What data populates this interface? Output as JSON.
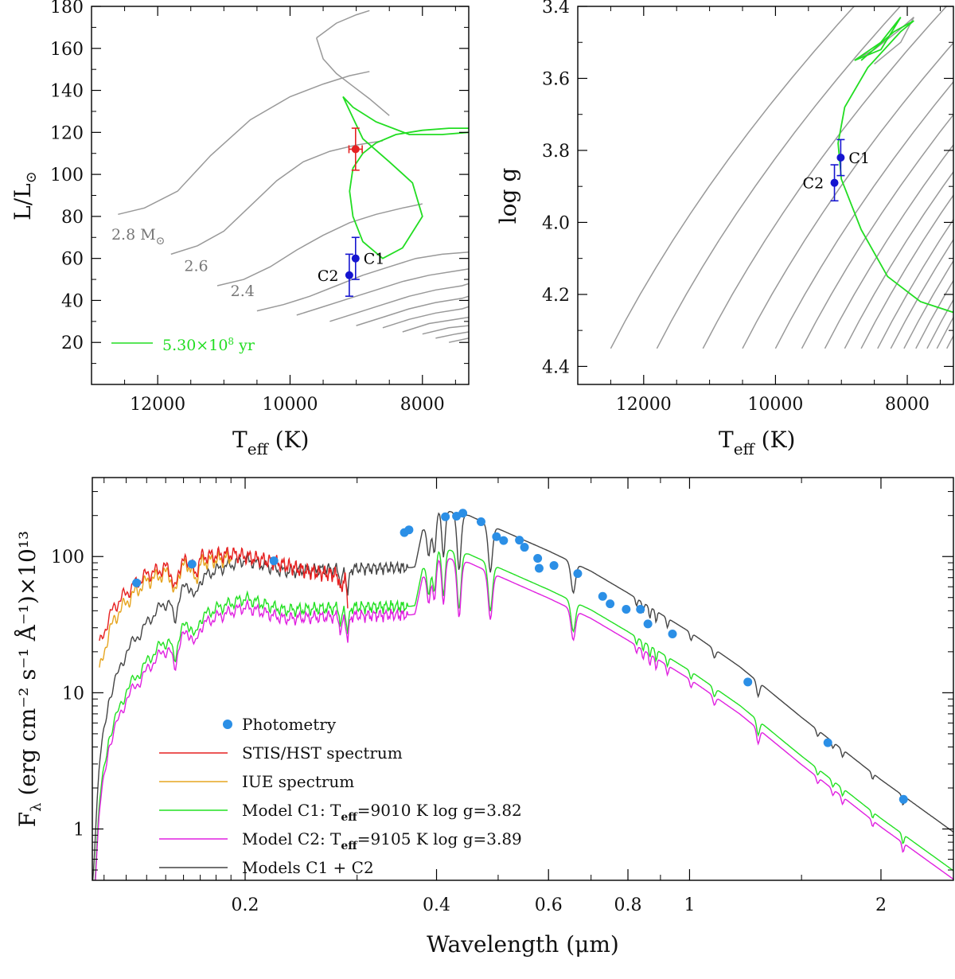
{
  "chart_data": [
    {
      "id": "hr_diagram",
      "type": "line",
      "title": "",
      "xlabel": "T",
      "xlabel_sub": "eff",
      "xlabel_units": "(K)",
      "ylabel": "L/L",
      "ylabel_sub": "⊙",
      "xlim": [
        13000,
        7300
      ],
      "ylim": [
        0,
        180
      ],
      "xticks": [
        12000,
        10000,
        8000
      ],
      "yticks": [
        20,
        40,
        60,
        80,
        100,
        120,
        140,
        160,
        180
      ],
      "grid": false,
      "colors": {
        "track": "#999999",
        "isochrone": "#22dd22",
        "point": "#1515d0",
        "primary": "#e52222"
      },
      "tracks": [
        {
          "name": "2.8",
          "x": [
            12600,
            12200,
            11700,
            11200,
            10600,
            10000,
            9500,
            9100,
            8800
          ],
          "y": [
            81,
            84,
            92,
            109,
            126,
            137,
            143,
            147,
            149
          ]
        },
        {
          "name": "2.6",
          "x": [
            11800,
            11400,
            11000,
            10600,
            10200,
            9800,
            9400,
            9000,
            8600
          ],
          "y": [
            62,
            66,
            73,
            85,
            97,
            106,
            111,
            114,
            116
          ]
        },
        {
          "name": "2.4",
          "x": [
            11100,
            10700,
            10300,
            9900,
            9500,
            9100,
            8700,
            8300,
            8000
          ],
          "y": [
            47,
            50,
            56,
            64,
            71,
            77,
            81,
            84,
            86
          ]
        },
        {
          "name": "g1",
          "x": [
            10500,
            10100,
            9700,
            9300,
            8900,
            8500,
            8100,
            7700,
            7300
          ],
          "y": [
            35,
            38,
            42,
            47,
            52,
            56,
            60,
            62,
            63
          ]
        },
        {
          "name": "g2",
          "x": [
            9900,
            9500,
            9100,
            8700,
            8300,
            7900,
            7500,
            7300
          ],
          "y": [
            33,
            37,
            41,
            45,
            49,
            52,
            54,
            55
          ]
        },
        {
          "name": "g3",
          "x": [
            9400,
            9000,
            8600,
            8200,
            7800,
            7400,
            7300
          ],
          "y": [
            30,
            34,
            38,
            42,
            45,
            47,
            48
          ]
        },
        {
          "name": "g4",
          "x": [
            9000,
            8600,
            8200,
            7800,
            7400,
            7300
          ],
          "y": [
            28,
            32,
            36,
            39,
            41,
            42
          ]
        },
        {
          "name": "g5",
          "x": [
            8600,
            8200,
            7800,
            7400,
            7300
          ],
          "y": [
            27,
            31,
            34,
            36,
            37
          ]
        },
        {
          "name": "g6",
          "x": [
            8300,
            7900,
            7500,
            7300
          ],
          "y": [
            25,
            29,
            31,
            32
          ]
        },
        {
          "name": "g7",
          "x": [
            8000,
            7600,
            7300
          ],
          "y": [
            24,
            27,
            28
          ]
        },
        {
          "name": "g8",
          "x": [
            7800,
            7500,
            7300
          ],
          "y": [
            22,
            24,
            25
          ]
        },
        {
          "name": "g9",
          "x": [
            7600,
            7300
          ],
          "y": [
            20,
            22
          ]
        },
        {
          "name": "hook_a",
          "x": [
            9600,
            9500,
            9300,
            9050,
            8800,
            8500
          ],
          "y": [
            165,
            155,
            148,
            142,
            136,
            128
          ]
        },
        {
          "name": "hook_b",
          "x": [
            9600,
            9300,
            9000,
            8800
          ],
          "y": [
            165,
            172,
            176,
            178
          ]
        }
      ],
      "isochrone": {
        "label": "5.30×10",
        "label_exp": "8",
        "label_unit": "yr",
        "x": [
          7300,
          7600,
          8000,
          8400,
          8700,
          8900,
          9050,
          9100,
          9050,
          8900,
          8600,
          8300,
          8000,
          8150,
          8500,
          8900,
          9200,
          9050,
          8700,
          8200,
          7700,
          7300
        ],
        "y": [
          122,
          122,
          121,
          119,
          115,
          110,
          103,
          92,
          80,
          68,
          60,
          65,
          80,
          96,
          106,
          117,
          137,
          132,
          125,
          119,
          119,
          120
        ]
      },
      "points": [
        {
          "name": "C1",
          "x": 9010,
          "y": 60,
          "yerr": 10
        },
        {
          "name": "C2",
          "x": 9105,
          "y": 52,
          "yerr": 10
        }
      ],
      "primary": {
        "x": 9010,
        "y": 112,
        "xerr": 100,
        "yerr": 10
      },
      "mass_labels": [
        {
          "text": "2.8 M",
          "sub": "⊙",
          "x": 12700,
          "y": 69
        },
        {
          "text": "2.6",
          "x": 11600,
          "y": 54
        },
        {
          "text": "2.4",
          "x": 10900,
          "y": 42
        }
      ]
    },
    {
      "id": "kiel_diagram",
      "type": "line",
      "title": "",
      "xlabel": "T",
      "xlabel_sub": "eff",
      "xlabel_units": "(K)",
      "ylabel": "log g",
      "xlim": [
        13000,
        7300
      ],
      "ylim": [
        4.45,
        3.4
      ],
      "xticks": [
        12000,
        10000,
        8000
      ],
      "yticks": [
        3.4,
        3.6,
        3.8,
        4.0,
        4.2,
        4.4
      ],
      "ytick_labels": [
        "3.4",
        "3.6",
        "3.8",
        "4.0",
        "4.2",
        "4.4"
      ],
      "grid": false,
      "colors": {
        "track": "#999999",
        "isochrone": "#22dd22",
        "point": "#1515d0"
      },
      "track_starts_x": [
        12500,
        11800,
        11100,
        10500,
        10000,
        9600,
        9250,
        8950,
        8700,
        8450,
        8250,
        8050,
        7870,
        7700,
        7550,
        7400
      ],
      "track_starts_y": 4.35,
      "track_slope_dx": 4200,
      "hook": {
        "x": [
          8800,
          8500,
          8150,
          7900,
          8100,
          8500
        ],
        "y": [
          3.55,
          3.52,
          3.47,
          3.43,
          3.5,
          3.56
        ]
      },
      "isochrone": {
        "x": [
          7300,
          7800,
          8300,
          8700,
          9000,
          9050,
          8950,
          8600,
          8100,
          7900,
          8200,
          8700
        ],
        "y": [
          4.25,
          4.22,
          4.15,
          4.02,
          3.88,
          3.78,
          3.68,
          3.57,
          3.47,
          3.44,
          3.47,
          3.55
        ]
      },
      "isochrone_loop": {
        "x": [
          8800,
          8400,
          8100,
          8400,
          8800
        ],
        "y": [
          3.55,
          3.5,
          3.43,
          3.52,
          3.55
        ]
      },
      "points": [
        {
          "name": "C1",
          "x": 9010,
          "y": 3.82,
          "yerr": 0.05
        },
        {
          "name": "C2",
          "x": 9105,
          "y": 3.89,
          "yerr": 0.05
        }
      ]
    },
    {
      "id": "sed",
      "type": "line",
      "title": "",
      "xlabel": "Wavelength (μm)",
      "ylabel": "F",
      "ylabel_sub": "λ",
      "ylabel_units": "(erg cm⁻² s⁻¹ Å⁻¹)×10¹³",
      "xscale": "log",
      "yscale": "log",
      "xlim": [
        0.115,
        2.6
      ],
      "ylim": [
        0.42,
        380
      ],
      "xticks": [
        0.2,
        0.4,
        0.6,
        0.8,
        1,
        2
      ],
      "xtick_labels": [
        "0.2",
        "0.4",
        "0.6",
        "0.8",
        "1",
        "2"
      ],
      "yticks": [
        1,
        10,
        100
      ],
      "ytick_labels": [
        "1",
        "10",
        "100"
      ],
      "grid": false,
      "photometry": {
        "x": [
          0.135,
          0.165,
          0.222,
          0.356,
          0.362,
          0.413,
          0.43,
          0.44,
          0.47,
          0.497,
          0.51,
          0.54,
          0.55,
          0.577,
          0.58,
          0.612,
          0.667,
          0.73,
          0.75,
          0.795,
          0.837,
          0.86,
          0.94,
          1.235,
          1.65,
          2.17
        ],
        "y": [
          64,
          88,
          93,
          150,
          157,
          196,
          198,
          208,
          180,
          140,
          131,
          132,
          117,
          97,
          82,
          86,
          75,
          51,
          45,
          41,
          41,
          32,
          27,
          12,
          4.3,
          1.65
        ]
      },
      "series": [
        {
          "name": "Photometry",
          "kind": "points",
          "color": "#2b8fe6"
        },
        {
          "name": "STIS/HST spectrum",
          "kind": "line",
          "color": "#e62020",
          "base_x": [
            0.118,
            0.125,
            0.14,
            0.17,
            0.19,
            0.22,
            0.25,
            0.29
          ],
          "base_y": [
            22,
            44,
            74,
            100,
            105,
            92,
            78,
            72
          ]
        },
        {
          "name": "IUE spectrum",
          "kind": "line",
          "color": "#e6a520",
          "base_x": [
            0.118,
            0.125,
            0.14,
            0.16,
            0.18,
            0.19
          ],
          "base_y": [
            14,
            36,
            66,
            85,
            95,
            98
          ]
        },
        {
          "name": "Model C1: T",
          "sub": "eff",
          "rest": "=9010 K  log g=3.82",
          "kind": "model",
          "color": "#22e022",
          "scale": 0.52
        },
        {
          "name": "Model C2: T",
          "sub": "eff",
          "rest": "=9105 K  log g=3.89",
          "kind": "model",
          "color": "#e020e0",
          "scale": 0.45
        },
        {
          "name": "Models C1 + C2",
          "kind": "model",
          "color": "#444444",
          "scale": 1.0
        }
      ],
      "model_base": {
        "x": [
          0.115,
          0.118,
          0.122,
          0.13,
          0.145,
          0.16,
          0.18,
          0.2,
          0.23,
          0.26,
          0.3,
          0.34,
          0.365,
          0.37,
          0.38,
          0.4,
          0.45,
          0.5,
          0.6,
          0.7,
          0.8,
          0.9,
          1.0,
          1.2,
          1.5,
          2.0,
          2.6
        ],
        "y": [
          0.4,
          3,
          9,
          20,
          40,
          58,
          80,
          95,
          78,
          80,
          82,
          83,
          83,
          84,
          155,
          225,
          200,
          160,
          110,
          78,
          54,
          38,
          28,
          15.5,
          6.6,
          2.3,
          0.95
        ]
      },
      "absorption_lines": [
        {
          "x": 0.3889,
          "depth": 0.45,
          "w": 0.004
        },
        {
          "x": 0.397,
          "depth": 0.5,
          "w": 0.004
        },
        {
          "x": 0.4102,
          "depth": 0.55,
          "w": 0.004
        },
        {
          "x": 0.434,
          "depth": 0.62,
          "w": 0.005
        },
        {
          "x": 0.4861,
          "depth": 0.55,
          "w": 0.006
        },
        {
          "x": 0.6563,
          "depth": 0.4,
          "w": 0.008
        },
        {
          "x": 0.155,
          "depth": 0.35,
          "w": 0.002
        },
        {
          "x": 0.167,
          "depth": 0.25,
          "w": 0.002
        },
        {
          "x": 0.29,
          "depth": 0.35,
          "w": 0.002
        },
        {
          "x": 0.283,
          "depth": 0.25,
          "w": 0.002
        },
        {
          "x": 0.825,
          "depth": 0.12,
          "w": 0.004
        },
        {
          "x": 0.845,
          "depth": 0.15,
          "w": 0.004
        },
        {
          "x": 0.866,
          "depth": 0.18,
          "w": 0.004
        },
        {
          "x": 0.886,
          "depth": 0.18,
          "w": 0.004
        },
        {
          "x": 0.923,
          "depth": 0.15,
          "w": 0.005
        },
        {
          "x": 1.005,
          "depth": 0.12,
          "w": 0.006
        },
        {
          "x": 1.094,
          "depth": 0.14,
          "w": 0.008
        },
        {
          "x": 1.282,
          "depth": 0.22,
          "w": 0.01
        },
        {
          "x": 1.59,
          "depth": 0.1,
          "w": 0.01
        },
        {
          "x": 1.68,
          "depth": 0.1,
          "w": 0.01
        },
        {
          "x": 1.74,
          "depth": 0.12,
          "w": 0.01
        },
        {
          "x": 1.94,
          "depth": 0.1,
          "w": 0.01
        },
        {
          "x": 2.166,
          "depth": 0.15,
          "w": 0.012
        }
      ],
      "legend_position": "lower-left"
    }
  ]
}
